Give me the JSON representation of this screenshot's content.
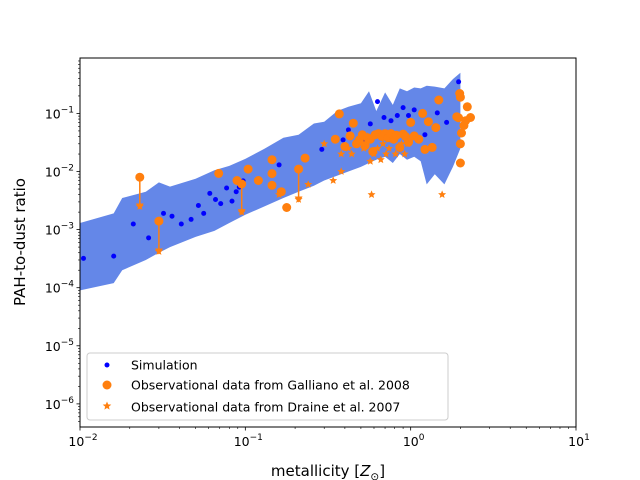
{
  "chart_data": {
    "type": "scatter",
    "title": "",
    "xlabel": "metallicity [Z_⊙]",
    "xlabel_main": "metallicity [",
    "xlabel_sym": "Z",
    "xlabel_sub": "⊙",
    "xlabel_end": "]",
    "ylabel": "PAH-to-dust ratio",
    "xscale": "log",
    "yscale": "log",
    "xlim": [
      0.01,
      10
    ],
    "ylim": [
      4e-07,
      0.9
    ],
    "x_ticks": [
      {
        "value": 0.01,
        "base": "10",
        "exp": "−2"
      },
      {
        "value": 0.1,
        "base": "10",
        "exp": "−1"
      },
      {
        "value": 1,
        "base": "10",
        "exp": "0"
      },
      {
        "value": 10,
        "base": "10",
        "exp": "1"
      }
    ],
    "y_ticks": [
      {
        "value": 1e-06,
        "base": "10",
        "exp": "−6"
      },
      {
        "value": 1e-05,
        "base": "10",
        "exp": "−5"
      },
      {
        "value": 0.0001,
        "base": "10",
        "exp": "−4"
      },
      {
        "value": 0.001,
        "base": "10",
        "exp": "−3"
      },
      {
        "value": 0.01,
        "base": "10",
        "exp": "−2"
      },
      {
        "value": 0.1,
        "base": "10",
        "exp": "−1"
      }
    ],
    "legend_position": "lower-left",
    "colors": {
      "simulation": "#0000ff",
      "observations": "#ff7f0e",
      "band": "#6487e8"
    },
    "band": {
      "name": "Simulation range",
      "x": [
        0.01,
        0.016,
        0.018,
        0.025,
        0.03,
        0.035,
        0.05,
        0.065,
        0.08,
        0.1,
        0.13,
        0.17,
        0.21,
        0.26,
        0.3,
        0.36,
        0.42,
        0.5,
        0.56,
        0.62,
        0.7,
        0.78,
        0.86,
        0.95,
        1.05,
        1.15,
        1.25,
        1.4,
        1.6,
        1.8,
        2.0
      ],
      "upper": [
        0.0013,
        0.0019,
        0.0035,
        0.0045,
        0.0065,
        0.0055,
        0.0075,
        0.0105,
        0.0125,
        0.0165,
        0.0245,
        0.038,
        0.043,
        0.067,
        0.072,
        0.11,
        0.13,
        0.15,
        0.24,
        0.11,
        0.23,
        0.14,
        0.27,
        0.24,
        0.28,
        0.27,
        0.3,
        0.29,
        0.27,
        0.39,
        0.5
      ],
      "lower": [
        9e-05,
        0.00012,
        0.0002,
        0.0003,
        0.0004,
        0.0005,
        0.00075,
        0.00095,
        0.0013,
        0.0018,
        0.0025,
        0.0035,
        0.0045,
        0.0057,
        0.007,
        0.0085,
        0.01,
        0.012,
        0.014,
        0.016,
        0.018,
        0.014,
        0.02,
        0.016,
        0.018,
        0.015,
        0.006,
        0.009,
        0.006,
        0.012,
        0.025
      ]
    },
    "series": [
      {
        "name": "Simulation",
        "marker": "small-dot",
        "points": [
          [
            0.0105,
            0.00032
          ],
          [
            0.016,
            0.00035
          ],
          [
            0.026,
            0.00072
          ],
          [
            0.021,
            0.00125
          ],
          [
            0.032,
            0.0019
          ],
          [
            0.036,
            0.0017
          ],
          [
            0.041,
            0.00125
          ],
          [
            0.047,
            0.0015
          ],
          [
            0.052,
            0.0026
          ],
          [
            0.056,
            0.0019
          ],
          [
            0.061,
            0.0042
          ],
          [
            0.066,
            0.0033
          ],
          [
            0.071,
            0.0028
          ],
          [
            0.077,
            0.0052
          ],
          [
            0.083,
            0.0031
          ],
          [
            0.088,
            0.0045
          ],
          [
            0.092,
            0.0054
          ],
          [
            0.097,
            0.0069
          ],
          [
            0.16,
            0.013
          ],
          [
            0.29,
            0.024
          ],
          [
            0.39,
            0.035
          ],
          [
            0.42,
            0.052
          ],
          [
            0.52,
            0.035
          ],
          [
            0.57,
            0.066
          ],
          [
            0.63,
            0.16
          ],
          [
            0.69,
            0.085
          ],
          [
            0.76,
            0.075
          ],
          [
            0.83,
            0.092
          ],
          [
            0.9,
            0.126
          ],
          [
            0.97,
            0.092
          ],
          [
            1.05,
            0.115
          ],
          [
            1.22,
            0.043
          ],
          [
            1.45,
            0.102
          ],
          [
            1.65,
            0.07
          ],
          [
            1.95,
            0.35
          ]
        ]
      },
      {
        "name": "Observational data from Galliano et al. 2008",
        "marker": "circle",
        "points": [
          [
            0.023,
            0.008
          ],
          [
            0.03,
            0.0014
          ],
          [
            0.069,
            0.0093
          ],
          [
            0.089,
            0.007
          ],
          [
            0.095,
            0.0061
          ],
          [
            0.104,
            0.011
          ],
          [
            0.12,
            0.007
          ],
          [
            0.145,
            0.016
          ],
          [
            0.145,
            0.0092
          ],
          [
            0.145,
            0.0058
          ],
          [
            0.165,
            0.0045
          ],
          [
            0.178,
            0.0024
          ],
          [
            0.21,
            0.011
          ],
          [
            0.23,
            0.017
          ],
          [
            0.35,
            0.036
          ],
          [
            0.37,
            0.098
          ],
          [
            0.4,
            0.027
          ],
          [
            0.43,
            0.041
          ],
          [
            0.45,
            0.068
          ],
          [
            0.47,
            0.03
          ],
          [
            0.49,
            0.035
          ],
          [
            0.51,
            0.043
          ],
          [
            0.53,
            0.028
          ],
          [
            0.55,
            0.038
          ],
          [
            0.57,
            0.036
          ],
          [
            0.59,
            0.022
          ],
          [
            0.61,
            0.043
          ],
          [
            0.64,
            0.045
          ],
          [
            0.67,
            0.04
          ],
          [
            0.7,
            0.045
          ],
          [
            0.73,
            0.038
          ],
          [
            0.76,
            0.045
          ],
          [
            0.79,
            0.036
          ],
          [
            0.82,
            0.042
          ],
          [
            0.86,
            0.026
          ],
          [
            0.9,
            0.044
          ],
          [
            0.93,
            0.04
          ],
          [
            0.97,
            0.032
          ],
          [
            1.0,
            0.07
          ],
          [
            1.05,
            0.041
          ],
          [
            1.12,
            0.036
          ],
          [
            1.18,
            0.1
          ],
          [
            1.22,
            0.024
          ],
          [
            1.28,
            0.072
          ],
          [
            1.35,
            0.026
          ],
          [
            1.42,
            0.057
          ],
          [
            1.48,
            0.17
          ],
          [
            1.9,
            0.088
          ],
          [
            1.95,
            0.084
          ],
          [
            1.98,
            0.22
          ],
          [
            2.0,
            0.19
          ],
          [
            2.03,
            0.046
          ],
          [
            2.0,
            0.03
          ],
          [
            2.0,
            0.014
          ],
          [
            2.1,
            0.062
          ],
          [
            2.15,
            0.075
          ],
          [
            2.2,
            0.13
          ],
          [
            2.3,
            0.085
          ]
        ]
      },
      {
        "name": "Observational data from Draine et al. 2007",
        "marker": "star",
        "points": [
          [
            0.023,
            0.0025
          ],
          [
            0.03,
            0.00042
          ],
          [
            0.095,
            0.002
          ],
          [
            0.16,
            0.004
          ],
          [
            0.21,
            0.0033
          ],
          [
            0.24,
            0.006
          ],
          [
            0.34,
            0.007
          ],
          [
            0.38,
            0.01
          ],
          [
            0.3,
            0.03
          ],
          [
            0.38,
            0.02
          ],
          [
            0.42,
            0.025
          ],
          [
            0.44,
            0.02
          ],
          [
            0.47,
            0.03
          ],
          [
            0.52,
            0.025
          ],
          [
            0.55,
            0.04
          ],
          [
            0.57,
            0.015
          ],
          [
            0.58,
            0.004
          ],
          [
            0.6,
            0.02
          ],
          [
            0.63,
            0.025
          ],
          [
            0.66,
            0.016
          ],
          [
            0.68,
            0.03
          ],
          [
            0.71,
            0.02
          ],
          [
            0.74,
            0.025
          ],
          [
            0.78,
            0.035
          ],
          [
            0.81,
            0.02
          ],
          [
            0.85,
            0.025
          ],
          [
            0.88,
            0.03
          ],
          [
            0.92,
            0.02
          ],
          [
            0.96,
            0.03
          ],
          [
            1.0,
            0.035
          ],
          [
            1.55,
            0.004
          ]
        ]
      }
    ],
    "errorbars": [
      {
        "x": 0.023,
        "from": 0.008,
        "to": 0.0025
      },
      {
        "x": 0.03,
        "from": 0.0014,
        "to": 0.00042
      },
      {
        "x": 0.095,
        "from": 0.0061,
        "to": 0.002
      },
      {
        "x": 0.21,
        "from": 0.011,
        "to": 0.0033
      }
    ]
  }
}
